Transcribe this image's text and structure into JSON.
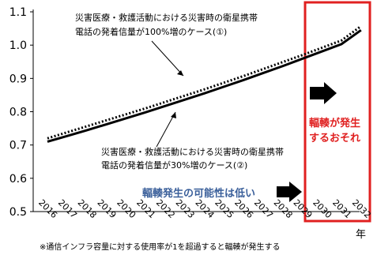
{
  "chart_data": {
    "type": "line",
    "title": "",
    "xlabel": "",
    "ylabel": "",
    "x_unit": "年",
    "ylim": [
      0.5,
      1.1
    ],
    "yticks": [
      "0.5",
      "0.6",
      "0.7",
      "0.8",
      "0.9",
      "1.0",
      "1.1"
    ],
    "x": [
      "2016",
      "2017",
      "2018",
      "2019",
      "2020",
      "2021",
      "2022",
      "2023",
      "2024",
      "2025",
      "2026",
      "2027",
      "2028",
      "2029",
      "2030",
      "2031",
      "2032"
    ],
    "series": [
      {
        "name": "災害医療・救護活動における災害時の衛星携帯電話の発着信量が100%増のケース(①)",
        "style": "dotted",
        "values": [
          0.72,
          0.738,
          0.756,
          0.774,
          0.792,
          0.81,
          0.829,
          0.848,
          0.867,
          0.887,
          0.907,
          0.928,
          0.949,
          0.97,
          0.992,
          1.014,
          1.057
        ]
      },
      {
        "name": "災害医療・救護活動における災害時の衛星携帯電話の発着信量が30%増のケース(②)",
        "style": "solid",
        "values": [
          0.71,
          0.727,
          0.744,
          0.762,
          0.78,
          0.798,
          0.817,
          0.836,
          0.855,
          0.875,
          0.895,
          0.916,
          0.937,
          0.959,
          0.981,
          1.003,
          1.045
        ]
      }
    ],
    "annotation_series1_line1": "災害医療・救護活動における災害時の衛星携帯",
    "annotation_series1_line2": "電話の発着信量が100%増のケース(①)",
    "annotation_series2_line1": "災害医療・救護活動における災害時の衛星携帯",
    "annotation_series2_line2": "電話の発着信量が30%増のケース(②)",
    "danger_label_line1": "輻輳が発生",
    "danger_label_line2": "するおそれ",
    "safe_label": "輻輳発生の可能性は低い",
    "note": "※通信インフラ容量に対する使用率が1を超過すると輻輳が発生する",
    "colors": {
      "danger": "#e02020",
      "safe_text": "#3a5f9a",
      "line": "#000000",
      "grid": "#cccccc"
    }
  }
}
